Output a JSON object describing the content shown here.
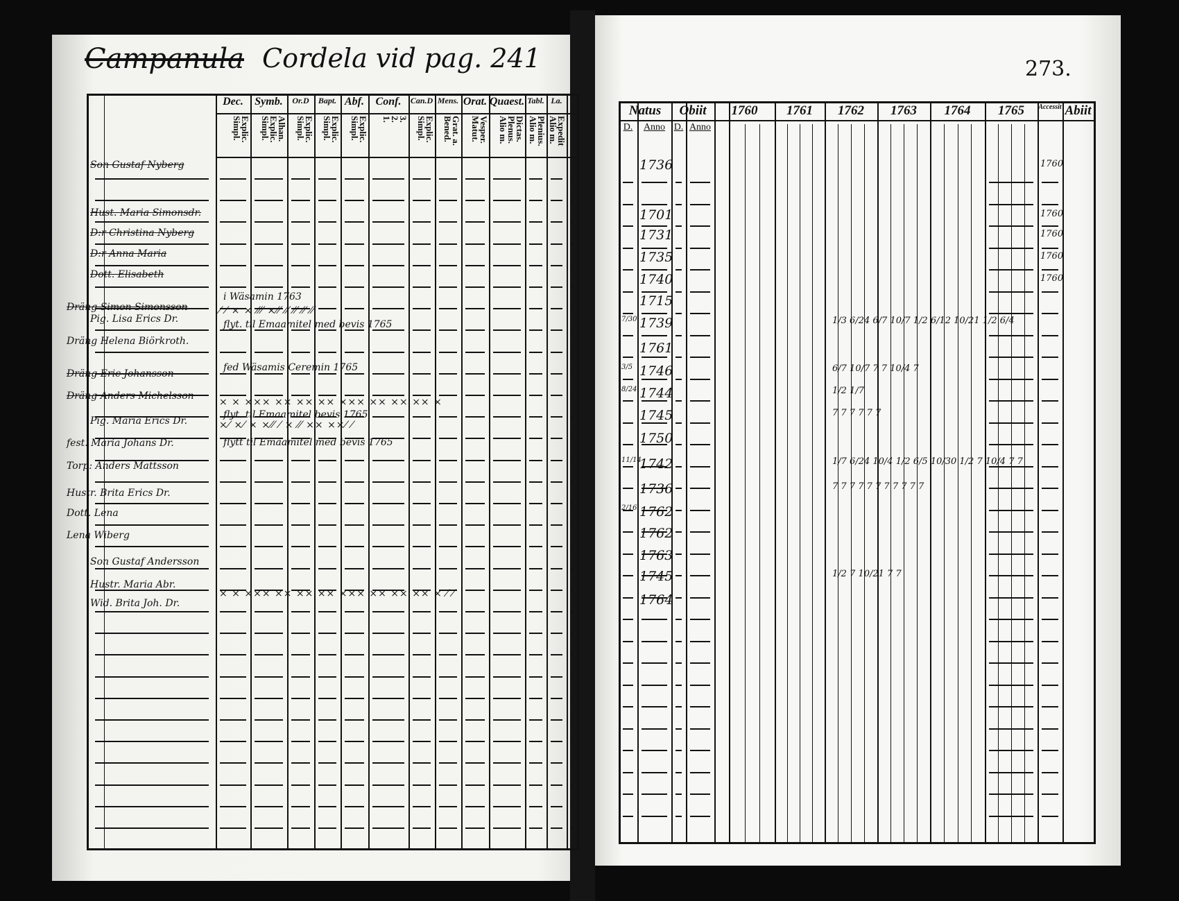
{
  "left_page": {
    "title_struck": "Campanula",
    "title": "Cordela vid pag. 241",
    "column_headers": [
      "Dec.",
      "Symb.",
      "Or.D",
      "Bapt.",
      "Abf.",
      "Conf.",
      "Can.D",
      "Mens.",
      "Orat.",
      "Quaest.",
      "Tabl.",
      "La."
    ],
    "column_subheaders": [
      "Explic.\nSimpl.",
      "Alhan.\nExplic.\nSimpl.",
      "Explic.\nSimpl.",
      "Explic.\nSimpl.",
      "Explic.\nSimpl.",
      "3.\n2.\n1.",
      "Explic.\nSimpl.",
      "Grat. a.\nBened.",
      "Vesper.\nMatut.",
      "Dictas.\nPlenus.\nAlio m.",
      "Plenius.\nAlio m.",
      "Expedit\nAlio m."
    ],
    "names": [
      {
        "text": "Son Gustaf Nyberg",
        "struck": true
      },
      {
        "text": "Hust. Maria Simonsdr.",
        "struck": true
      },
      {
        "text": "D:r Christina Nyberg",
        "struck": true
      },
      {
        "text": "D:r Anna Maria",
        "struck": true
      },
      {
        "text": "Dott. Elisabeth",
        "struck": true
      },
      {
        "text": "Dräng Simon Simonsson",
        "struck": true
      },
      {
        "text": "Pig. Lisa Erics Dr.",
        "struck": false
      },
      {
        "text": "Dräng Helena Biörkroth.",
        "struck": false
      },
      {
        "text": "Dräng Eric Johansson",
        "struck": true
      },
      {
        "text": "Dräng Anders Michelsson",
        "struck": true
      },
      {
        "text": "Pig. Maria Erics Dr.",
        "struck": false
      },
      {
        "text": "fest. Maria Johans Dr.",
        "struck": false
      },
      {
        "text": "Torp: Anders Mattsson",
        "struck": false
      },
      {
        "text": "Hustr. Brita Erics Dr.",
        "struck": false
      },
      {
        "text": "Dott. Lena",
        "struck": false
      },
      {
        "text": "Lena Wiberg",
        "struck": false
      },
      {
        "text": "Son Gustaf Andersson",
        "struck": false
      },
      {
        "text": "Hustr. Maria Abr.",
        "struck": false
      },
      {
        "text": "Wid. Brita Joh. Dr.",
        "struck": false
      }
    ],
    "notes": [
      "i Wäsamin 1763",
      "flyt. til Emaamitel med bevis 1765",
      "fed Wäsamis Ceremin 1765",
      "flyt. til Emaamitel bevis 1765",
      "flytt til Emaamitel med bevis 1765"
    ],
    "marks": [
      "⁄ ⁄   ×      ×   ⁄⁄⁄  ×⁄⁄ ⁄⁄      ⁄⁄  ⁄⁄   ⁄⁄",
      "× ×  ×××  ××  ××  ××  ×××  ××  ××  ××             ×",
      "×⁄ ×⁄     ×   ×⁄⁄   ⁄    ×    ⁄⁄ ×× ××⁄           ⁄",
      "× ×  ×××  ××  ××  ××  ×××  ××  ××  ××  ×       ⁄   ⁄"
    ]
  },
  "right_page": {
    "page_number": "273.",
    "headers": [
      "Natus",
      "Obiit",
      "1760",
      "1761",
      "1762",
      "1763",
      "1764",
      "1765",
      "Accessit",
      "Abiit"
    ],
    "subheaders": [
      "D.",
      "Anno",
      "D.",
      "Anno"
    ],
    "birth_years": [
      "1736",
      "",
      "1701",
      "1731",
      "1735",
      "1740",
      "1715",
      "1739",
      "1761",
      "1746",
      "1744",
      "1745",
      "1750",
      "1742",
      "1736",
      "1762",
      "1762",
      "1763",
      "1745",
      "1764"
    ],
    "birth_days": [
      "",
      "",
      "",
      "",
      "",
      "",
      "",
      "7/30",
      "",
      "3/5",
      "8/24",
      "",
      "",
      "11/14",
      "",
      "2/16",
      "",
      "",
      "",
      ""
    ],
    "accessit": [
      "1760",
      "",
      "1760",
      "1760",
      "1760",
      "1760"
    ],
    "tallies": [
      {
        "row": 7,
        "text": "1/3 6/24   6/7 10/7   1/2 6/12 10/21   1/2 6/4"
      },
      {
        "row": 9,
        "text": "         6/7 10/7   7  7 10/4    7"
      },
      {
        "row": 10,
        "text": "         1/2 1/7"
      },
      {
        "row": 11,
        "text": "          7 7        7  7      7 7"
      },
      {
        "row": 13,
        "text": "1/7 6/24 10/4   1/2 6/5 10/30  1/2 7 10/4    7 7"
      },
      {
        "row": 14,
        "text": "7 7 7     7 7 7    7 7 7     7 7"
      },
      {
        "row": 18,
        "text": "                           1/2 7 10/21  7 7"
      }
    ]
  }
}
